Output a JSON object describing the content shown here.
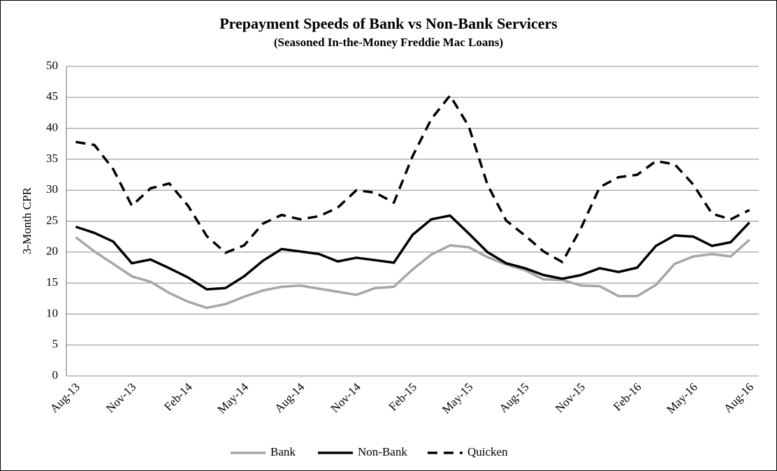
{
  "chart_data": {
    "type": "line",
    "title": "Prepayment Speeds of Bank vs Non-Bank Servicers",
    "subtitle": "(Seasoned In-the-Money  Freddie Mac Loans)",
    "y_label": "3-Month CPR",
    "categories": [
      "Aug-13",
      null,
      null,
      "Nov-13",
      null,
      null,
      "Feb-14",
      null,
      null,
      "May-14",
      null,
      null,
      "Aug-14",
      null,
      null,
      "Nov-14",
      null,
      null,
      "Feb-15",
      null,
      null,
      "May-15",
      null,
      null,
      "Aug-15",
      null,
      null,
      "Nov-15",
      null,
      null,
      "Feb-16",
      null,
      null,
      "May-16",
      null,
      null,
      "Aug-16"
    ],
    "series": [
      {
        "name": "Bank",
        "color": "#a6a6a6",
        "line_style": "solid",
        "values": [
          22.4,
          20.1,
          18.1,
          16.1,
          15.2,
          13.4,
          12.0,
          11.0,
          11.6,
          12.8,
          13.8,
          14.4,
          14.6,
          14.1,
          13.6,
          13.1,
          14.2,
          14.4,
          17.2,
          19.6,
          21.1,
          20.8,
          19.2,
          18.0,
          17.1,
          15.6,
          15.5,
          14.6,
          14.5,
          12.9,
          12.9,
          14.7,
          18.1,
          19.3,
          19.7,
          19.3,
          22.0
        ]
      },
      {
        "name": "Non-Bank",
        "color": "#000000",
        "line_style": "solid",
        "values": [
          24.1,
          23.1,
          21.7,
          18.2,
          18.8,
          17.4,
          15.9,
          14.0,
          14.2,
          16.1,
          18.6,
          20.5,
          20.1,
          19.7,
          18.5,
          19.1,
          18.7,
          18.3,
          22.8,
          25.3,
          25.9,
          23.0,
          20.0,
          18.2,
          17.4,
          16.3,
          15.7,
          16.3,
          17.4,
          16.8,
          17.5,
          21.0,
          22.7,
          22.5,
          21.0,
          21.6,
          24.8
        ]
      },
      {
        "name": "Quicken",
        "color": "#000000",
        "line_style": "dashed",
        "values": [
          37.8,
          37.3,
          33.4,
          27.5,
          30.3,
          31.1,
          27.5,
          22.6,
          19.9,
          21.1,
          24.6,
          26.0,
          25.3,
          25.8,
          27.2,
          30.0,
          29.6,
          28.0,
          35.5,
          41.5,
          45.3,
          40.3,
          30.9,
          25.1,
          22.7,
          20.1,
          18.4,
          23.9,
          30.5,
          32.1,
          32.5,
          34.7,
          34.2,
          30.9,
          26.2,
          25.3,
          26.8
        ]
      }
    ],
    "ylim": [
      0,
      50
    ],
    "yticks": [
      0,
      5,
      10,
      15,
      20,
      25,
      30,
      35,
      40,
      45,
      50
    ],
    "grid": true,
    "legend": "bottom"
  }
}
